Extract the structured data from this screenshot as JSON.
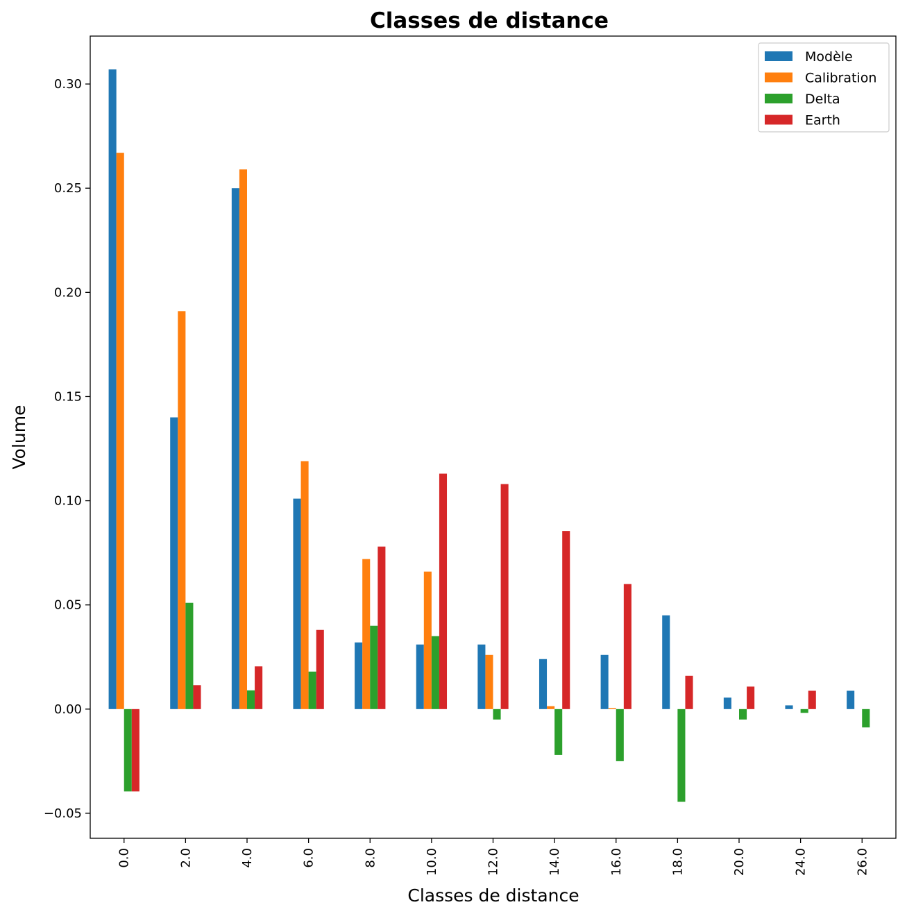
{
  "chart_data": {
    "type": "bar",
    "title": "Classes de distance",
    "xlabel": "Classes de distance",
    "ylabel": "Volume",
    "categories": [
      "0.0",
      "2.0",
      "4.0",
      "6.0",
      "8.0",
      "10.0",
      "12.0",
      "14.0",
      "16.0",
      "18.0",
      "20.0",
      "24.0",
      "26.0"
    ],
    "series": [
      {
        "name": "Modèle",
        "color": "#1f77b4",
        "values": [
          0.307,
          0.14,
          0.25,
          0.101,
          0.032,
          0.031,
          0.031,
          0.024,
          0.026,
          0.045,
          0.0055,
          0.0018,
          0.0088
        ]
      },
      {
        "name": "Calibration",
        "color": "#ff7f0e",
        "values": [
          0.267,
          0.191,
          0.259,
          0.119,
          0.072,
          0.066,
          0.026,
          0.0014,
          0.0005,
          0.0,
          0.0,
          0.0,
          0.0
        ]
      },
      {
        "name": "Delta",
        "color": "#2ca02c",
        "values": [
          -0.0395,
          0.051,
          0.009,
          0.018,
          0.04,
          0.035,
          -0.005,
          -0.022,
          -0.025,
          -0.0445,
          -0.005,
          -0.0018,
          -0.0088
        ]
      },
      {
        "name": "Earth",
        "color": "#d62728",
        "values": [
          -0.0395,
          0.0115,
          0.0205,
          0.038,
          0.078,
          0.113,
          0.108,
          0.0855,
          0.06,
          0.016,
          0.0108,
          0.0088,
          0.0
        ]
      }
    ],
    "ylim": [
      -0.062,
      0.323
    ],
    "yticks": [
      "−0.05",
      "0.00",
      "0.05",
      "0.10",
      "0.15",
      "0.20",
      "0.25",
      "0.30"
    ],
    "ytick_values": [
      -0.05,
      0.0,
      0.05,
      0.1,
      0.15,
      0.2,
      0.25,
      0.3
    ],
    "legend_position": "top-right",
    "grid": false
  }
}
